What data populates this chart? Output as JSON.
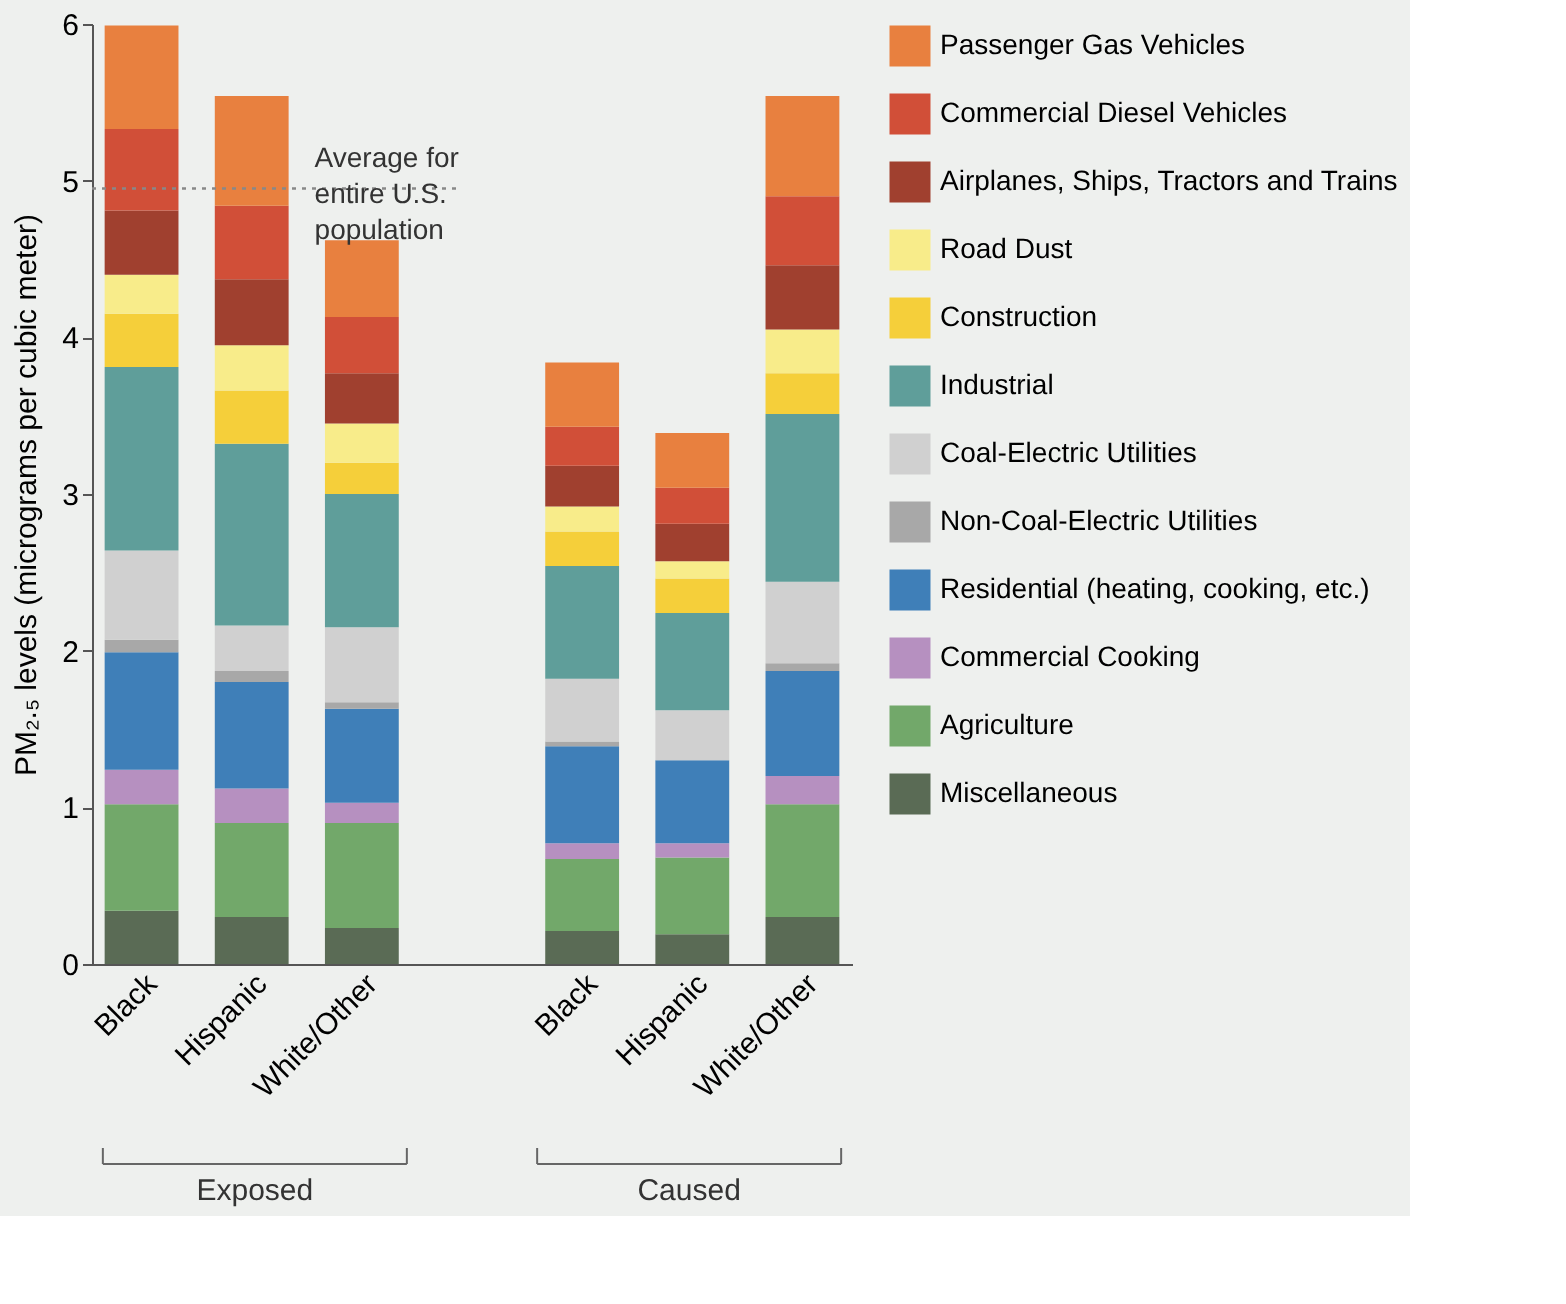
{
  "chart_data": {
    "type": "bar",
    "stacked": true,
    "ylabel": "PM₂.₅ levels (micrograms per cubic meter)",
    "categories": [
      "Black",
      "Hispanic",
      "White/Other",
      null,
      "Black",
      "Hispanic",
      "White/Other"
    ],
    "series": [
      {
        "name": "Miscellaneous",
        "color": "#5a6b55",
        "values": [
          0.34,
          0.3,
          0.23,
          null,
          0.21,
          0.19,
          0.3
        ]
      },
      {
        "name": "Agriculture",
        "color": "#72a86a",
        "values": [
          0.68,
          0.6,
          0.67,
          null,
          0.46,
          0.49,
          0.72
        ]
      },
      {
        "name": "Commercial Cooking",
        "color": "#b690c0",
        "values": [
          0.22,
          0.22,
          0.13,
          null,
          0.1,
          0.09,
          0.18
        ]
      },
      {
        "name": "Residential (heating, cooking, etc.)",
        "color": "#3f7fb8",
        "values": [
          0.75,
          0.68,
          0.6,
          null,
          0.62,
          0.53,
          0.67
        ]
      },
      {
        "name": "Non-Coal-Electric Utilities",
        "color": "#a8a8a8",
        "values": [
          0.08,
          0.07,
          0.04,
          null,
          0.03,
          null,
          0.05
        ]
      },
      {
        "name": "Coal-Electric Utilities",
        "color": "#d0d0d0",
        "values": [
          0.57,
          0.29,
          0.48,
          null,
          0.4,
          0.32,
          0.52
        ]
      },
      {
        "name": "Industrial",
        "color": "#5f9e9a",
        "values": [
          1.17,
          1.16,
          0.85,
          null,
          0.72,
          0.62,
          1.07
        ]
      },
      {
        "name": "Construction",
        "color": "#f5cf3a",
        "values": [
          0.34,
          0.34,
          0.2,
          null,
          0.22,
          0.22,
          0.26
        ]
      },
      {
        "name": "Road Dust",
        "color": "#f8ec8a",
        "values": [
          0.25,
          0.29,
          0.25,
          null,
          0.16,
          0.11,
          0.28
        ]
      },
      {
        "name": "Airplanes, Ships, Tractors and Trains",
        "color": "#a0402f",
        "values": [
          0.41,
          0.42,
          0.32,
          null,
          0.26,
          0.24,
          0.41
        ]
      },
      {
        "name": "Commercial Diesel Vehicles",
        "color": "#d14f38",
        "values": [
          0.52,
          0.47,
          0.36,
          null,
          0.25,
          0.23,
          0.44
        ]
      },
      {
        "name": "Passenger Gas Vehicles",
        "color": "#e8803f",
        "values": [
          0.66,
          0.7,
          0.49,
          null,
          0.41,
          0.35,
          0.64
        ]
      }
    ],
    "ylim": [
      0,
      6
    ],
    "yticks": [
      0,
      1,
      2,
      3,
      4,
      5,
      6
    ],
    "grid": false,
    "legend": "right",
    "ref_lines": [
      {
        "axis": "y",
        "value": 4.95,
        "label": "Average for entire U.S. population",
        "color": "#888888",
        "line_style": "dotted"
      }
    ],
    "annotations": [
      "Exposed",
      "Caused"
    ]
  }
}
